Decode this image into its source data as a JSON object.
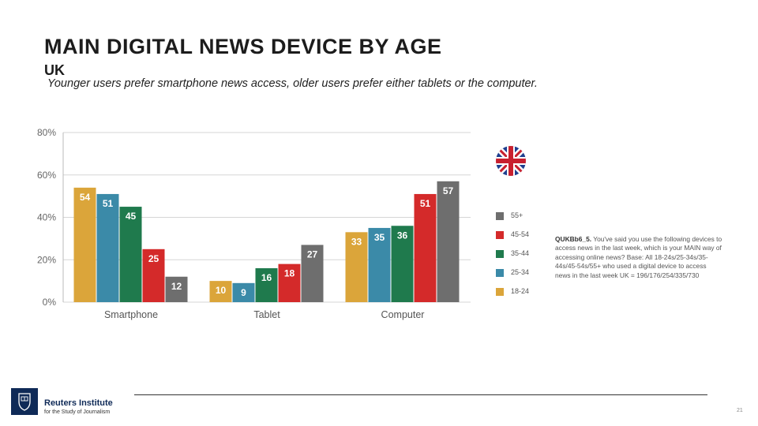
{
  "slide": {
    "title": "MAIN DIGITAL NEWS DEVICE BY AGE",
    "subtitle": "UK",
    "description": "Younger users prefer smartphone news access, older users prefer either tablets or the computer.",
    "note_id": "QUKBb6_5.",
    "note_text": "You've said you use the following devices to access news in the last week, which is your MAIN way of accessing online news? Base: All 18-24s/25-34s/35-44s/45-54s/55+ who used a digital device to access news in the last week UK = 196/176/254/335/730",
    "page_number": "21"
  },
  "branding": {
    "name": "Reuters Institute",
    "tagline": "for the Study of Journalism",
    "flag_icon": "uk-flag-icon",
    "logo_icon": "oxford-crest-icon"
  },
  "chart_data": {
    "type": "bar",
    "title": "",
    "xlabel": "",
    "ylabel": "",
    "ylim": [
      0,
      80
    ],
    "yticks": [
      0,
      20,
      40,
      60,
      80
    ],
    "ytick_labels": [
      "0%",
      "20%",
      "40%",
      "60%",
      "80%"
    ],
    "grid": true,
    "legend_position": "right",
    "categories": [
      "Smartphone",
      "Tablet",
      "Computer"
    ],
    "series": [
      {
        "name": "18-24",
        "color": "#dba53a",
        "values": [
          54,
          10,
          33
        ]
      },
      {
        "name": "25-34",
        "color": "#3b8aa8",
        "values": [
          51,
          9,
          35
        ]
      },
      {
        "name": "35-44",
        "color": "#1f7a4d",
        "values": [
          45,
          16,
          36
        ]
      },
      {
        "name": "45-54",
        "color": "#d42a2a",
        "values": [
          25,
          18,
          51
        ]
      },
      {
        "name": "55+",
        "color": "#6e6e6e",
        "values": [
          12,
          27,
          57
        ]
      }
    ]
  }
}
